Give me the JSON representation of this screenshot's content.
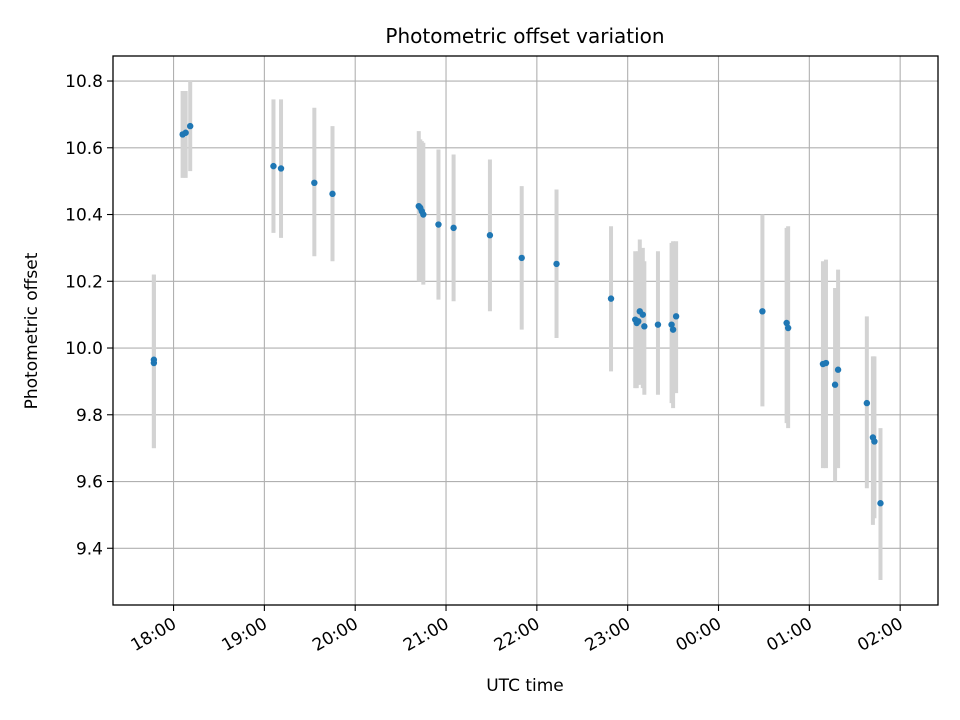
{
  "chart_data": {
    "type": "scatter",
    "title": "Photometric offset variation",
    "xlabel": "UTC time",
    "ylabel": "Photometric offset",
    "x_unit": "UTC time (HH:MM; times after midnight roll over to next day)",
    "xlim": [
      "17:20",
      "02:25"
    ],
    "ylim": [
      9.23,
      10.875
    ],
    "xticks": [
      "18:00",
      "19:00",
      "20:00",
      "21:00",
      "22:00",
      "23:00",
      "00:00",
      "01:00",
      "02:00"
    ],
    "yticks": [
      9.4,
      9.6,
      9.8,
      10.0,
      10.2,
      10.4,
      10.6,
      10.8
    ],
    "ytick_labels": [
      "9.4",
      "9.6",
      "9.8",
      "10.0",
      "10.2",
      "10.4",
      "10.6",
      "10.8"
    ],
    "grid": true,
    "colors": {
      "point": "#1f77b4",
      "errorbar": "#d3d3d3",
      "grid": "#b0b0b0"
    },
    "points": [
      {
        "t": "17:47",
        "y": 9.955,
        "ylow": 9.7,
        "yhigh": 10.22
      },
      {
        "t": "17:47",
        "y": 9.965,
        "ylow": 9.7,
        "yhigh": 10.22
      },
      {
        "t": "18:06",
        "y": 10.64,
        "ylow": 10.51,
        "yhigh": 10.77
      },
      {
        "t": "18:08",
        "y": 10.645,
        "ylow": 10.51,
        "yhigh": 10.77
      },
      {
        "t": "18:11",
        "y": 10.665,
        "ylow": 10.53,
        "yhigh": 10.8
      },
      {
        "t": "19:06",
        "y": 10.545,
        "ylow": 10.345,
        "yhigh": 10.745
      },
      {
        "t": "19:11",
        "y": 10.538,
        "ylow": 10.33,
        "yhigh": 10.745
      },
      {
        "t": "19:33",
        "y": 10.495,
        "ylow": 10.275,
        "yhigh": 10.72
      },
      {
        "t": "19:45",
        "y": 10.462,
        "ylow": 10.26,
        "yhigh": 10.665
      },
      {
        "t": "20:42",
        "y": 10.425,
        "ylow": 10.2,
        "yhigh": 10.65
      },
      {
        "t": "20:43",
        "y": 10.42,
        "ylow": 10.2,
        "yhigh": 10.625
      },
      {
        "t": "20:44",
        "y": 10.41,
        "ylow": 10.2,
        "yhigh": 10.62
      },
      {
        "t": "20:45",
        "y": 10.4,
        "ylow": 10.19,
        "yhigh": 10.615
      },
      {
        "t": "20:55",
        "y": 10.37,
        "ylow": 10.145,
        "yhigh": 10.595
      },
      {
        "t": "21:05",
        "y": 10.36,
        "ylow": 10.14,
        "yhigh": 10.58
      },
      {
        "t": "21:29",
        "y": 10.338,
        "ylow": 10.11,
        "yhigh": 10.565
      },
      {
        "t": "21:50",
        "y": 10.27,
        "ylow": 10.055,
        "yhigh": 10.485
      },
      {
        "t": "22:13",
        "y": 10.252,
        "ylow": 10.03,
        "yhigh": 10.475
      },
      {
        "t": "22:49",
        "y": 10.148,
        "ylow": 9.93,
        "yhigh": 10.365
      },
      {
        "t": "23:05",
        "y": 10.085,
        "ylow": 9.88,
        "yhigh": 10.29
      },
      {
        "t": "23:06",
        "y": 10.075,
        "ylow": 9.88,
        "yhigh": 10.285
      },
      {
        "t": "23:07",
        "y": 10.08,
        "ylow": 9.89,
        "yhigh": 10.29
      },
      {
        "t": "23:08",
        "y": 10.11,
        "ylow": 9.89,
        "yhigh": 10.325
      },
      {
        "t": "23:10",
        "y": 10.1,
        "ylow": 9.88,
        "yhigh": 10.3
      },
      {
        "t": "23:11",
        "y": 10.065,
        "ylow": 9.86,
        "yhigh": 10.26
      },
      {
        "t": "23:20",
        "y": 10.07,
        "ylow": 9.86,
        "yhigh": 10.29
      },
      {
        "t": "23:29",
        "y": 10.07,
        "ylow": 9.835,
        "yhigh": 10.315
      },
      {
        "t": "23:30",
        "y": 10.055,
        "ylow": 9.82,
        "yhigh": 10.32
      },
      {
        "t": "23:32",
        "y": 10.095,
        "ylow": 9.865,
        "yhigh": 10.32
      },
      {
        "t": "00:29",
        "y": 10.11,
        "ylow": 9.825,
        "yhigh": 10.4
      },
      {
        "t": "00:45",
        "y": 10.075,
        "ylow": 9.775,
        "yhigh": 10.36
      },
      {
        "t": "00:46",
        "y": 10.06,
        "ylow": 9.76,
        "yhigh": 10.365
      },
      {
        "t": "01:09",
        "y": 9.952,
        "ylow": 9.64,
        "yhigh": 10.26
      },
      {
        "t": "01:11",
        "y": 9.955,
        "ylow": 9.64,
        "yhigh": 10.265
      },
      {
        "t": "01:17",
        "y": 9.89,
        "ylow": 9.6,
        "yhigh": 10.18
      },
      {
        "t": "01:19",
        "y": 9.935,
        "ylow": 9.64,
        "yhigh": 10.235
      },
      {
        "t": "01:38",
        "y": 9.835,
        "ylow": 9.58,
        "yhigh": 10.095
      },
      {
        "t": "01:42",
        "y": 9.732,
        "ylow": 9.47,
        "yhigh": 9.975
      },
      {
        "t": "01:43",
        "y": 9.72,
        "ylow": 9.49,
        "yhigh": 9.975
      },
      {
        "t": "01:47",
        "y": 9.535,
        "ylow": 9.305,
        "yhigh": 9.76
      }
    ]
  }
}
